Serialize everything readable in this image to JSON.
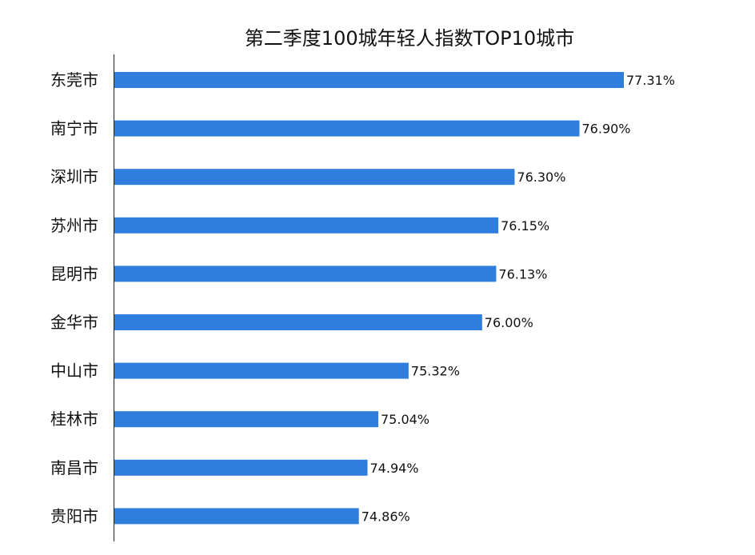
{
  "chart_data": {
    "type": "bar",
    "orientation": "horizontal",
    "title": "第二季度100城年轻人指数TOP10城市",
    "categories": [
      "东莞市",
      "南宁市",
      "深圳市",
      "苏州市",
      "昆明市",
      "金华市",
      "中山市",
      "桂林市",
      "南昌市",
      "贵阳市"
    ],
    "values": [
      77.31,
      76.9,
      76.3,
      76.15,
      76.13,
      76.0,
      75.32,
      75.04,
      74.94,
      74.86
    ],
    "data_labels": [
      "77.31%",
      "76.90%",
      "76.30%",
      "76.15%",
      "76.13%",
      "76.00%",
      "75.32%",
      "75.04%",
      "74.94%",
      "74.86%"
    ],
    "xlim": [
      72.6,
      77.31
    ],
    "bar_color": "#2f7ddd",
    "grid": false,
    "legend": "none"
  }
}
